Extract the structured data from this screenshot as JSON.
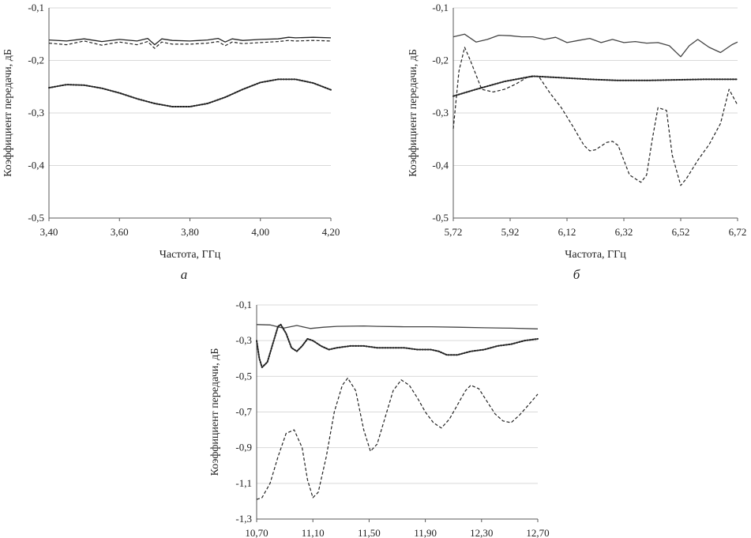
{
  "chart_data": [
    {
      "type": "line",
      "caption": "а",
      "xlabel": "Частота, ГГц",
      "ylabel": "Коэффициент передачи, дБ",
      "xlim": [
        3.4,
        4.2
      ],
      "ylim": [
        -0.5,
        -0.1
      ],
      "xticks": [
        "3,40",
        "3,60",
        "3,80",
        "4,00",
        "4,20"
      ],
      "yticks": [
        "-0,1",
        "-0,2",
        "-0,3",
        "-0,4",
        "-0,5"
      ],
      "grid": "horizontal",
      "series": [
        {
          "style": "solid",
          "color": "#222222",
          "x": [
            3.4,
            3.45,
            3.5,
            3.55,
            3.6,
            3.65,
            3.68,
            3.7,
            3.72,
            3.75,
            3.8,
            3.85,
            3.88,
            3.9,
            3.92,
            3.95,
            4.0,
            4.05,
            4.08,
            4.1,
            4.15,
            4.2
          ],
          "y": [
            -0.161,
            -0.163,
            -0.159,
            -0.164,
            -0.16,
            -0.163,
            -0.158,
            -0.17,
            -0.159,
            -0.162,
            -0.163,
            -0.161,
            -0.158,
            -0.165,
            -0.159,
            -0.162,
            -0.16,
            -0.159,
            -0.156,
            -0.157,
            -0.156,
            -0.157
          ]
        },
        {
          "style": "dashed",
          "color": "#222222",
          "x": [
            3.4,
            3.45,
            3.5,
            3.55,
            3.6,
            3.65,
            3.68,
            3.7,
            3.72,
            3.75,
            3.8,
            3.85,
            3.88,
            3.9,
            3.92,
            3.95,
            4.0,
            4.05,
            4.08,
            4.1,
            4.15,
            4.2
          ],
          "y": [
            -0.167,
            -0.17,
            -0.163,
            -0.171,
            -0.165,
            -0.17,
            -0.164,
            -0.177,
            -0.165,
            -0.169,
            -0.169,
            -0.167,
            -0.164,
            -0.172,
            -0.165,
            -0.168,
            -0.166,
            -0.164,
            -0.162,
            -0.163,
            -0.162,
            -0.163
          ]
        },
        {
          "style": "dotted",
          "color": "#222222",
          "x": [
            3.4,
            3.45,
            3.5,
            3.55,
            3.6,
            3.65,
            3.7,
            3.75,
            3.8,
            3.85,
            3.9,
            3.95,
            4.0,
            4.05,
            4.1,
            4.15,
            4.2
          ],
          "y": [
            -0.252,
            -0.246,
            -0.247,
            -0.253,
            -0.262,
            -0.273,
            -0.282,
            -0.288,
            -0.288,
            -0.282,
            -0.27,
            -0.255,
            -0.242,
            -0.236,
            -0.236,
            -0.243,
            -0.256
          ]
        }
      ]
    },
    {
      "type": "line",
      "caption": "б",
      "xlabel": "Частота, ГГц",
      "ylabel": "Коэффициент передачи, дБ",
      "xlim": [
        5.72,
        6.72
      ],
      "ylim": [
        -0.5,
        -0.1
      ],
      "xticks": [
        "5,72",
        "5,92",
        "6,12",
        "6,32",
        "6,52",
        "6,72"
      ],
      "yticks": [
        "-0,1",
        "-0,2",
        "-0,3",
        "-0,4",
        "-0,5"
      ],
      "grid": "horizontal",
      "series": [
        {
          "style": "solid",
          "color": "#444444",
          "x": [
            5.72,
            5.76,
            5.8,
            5.84,
            5.88,
            5.92,
            5.96,
            6.0,
            6.04,
            6.08,
            6.12,
            6.16,
            6.2,
            6.24,
            6.28,
            6.32,
            6.36,
            6.4,
            6.44,
            6.48,
            6.52,
            6.55,
            6.58,
            6.62,
            6.66,
            6.7,
            6.72
          ],
          "y": [
            -0.155,
            -0.15,
            -0.165,
            -0.16,
            -0.152,
            -0.153,
            -0.155,
            -0.155,
            -0.16,
            -0.156,
            -0.166,
            -0.162,
            -0.158,
            -0.166,
            -0.16,
            -0.166,
            -0.164,
            -0.167,
            -0.166,
            -0.172,
            -0.193,
            -0.172,
            -0.16,
            -0.175,
            -0.185,
            -0.17,
            -0.165
          ]
        },
        {
          "style": "dashed",
          "color": "#222222",
          "x": [
            5.72,
            5.74,
            5.76,
            5.78,
            5.82,
            5.86,
            5.9,
            5.94,
            5.98,
            6.02,
            6.06,
            6.1,
            6.14,
            6.18,
            6.2,
            6.22,
            6.26,
            6.28,
            6.3,
            6.34,
            6.38,
            6.4,
            6.42,
            6.44,
            6.47,
            6.49,
            6.52,
            6.54,
            6.58,
            6.62,
            6.66,
            6.69,
            6.72
          ],
          "y": [
            -0.33,
            -0.22,
            -0.175,
            -0.2,
            -0.255,
            -0.26,
            -0.255,
            -0.245,
            -0.232,
            -0.23,
            -0.262,
            -0.29,
            -0.325,
            -0.362,
            -0.372,
            -0.37,
            -0.356,
            -0.354,
            -0.362,
            -0.418,
            -0.432,
            -0.418,
            -0.35,
            -0.29,
            -0.295,
            -0.38,
            -0.438,
            -0.425,
            -0.39,
            -0.36,
            -0.32,
            -0.255,
            -0.285
          ]
        },
        {
          "style": "dotted",
          "color": "#222222",
          "x": [
            5.72,
            5.8,
            5.9,
            6.0,
            6.1,
            6.2,
            6.3,
            6.4,
            6.5,
            6.6,
            6.72
          ],
          "y": [
            -0.268,
            -0.255,
            -0.24,
            -0.23,
            -0.233,
            -0.236,
            -0.238,
            -0.238,
            -0.237,
            -0.236,
            -0.236
          ]
        }
      ]
    },
    {
      "type": "line",
      "caption": "",
      "xlabel": "",
      "ylabel": "Коэффициент передачи, дБ",
      "xlim": [
        10.7,
        12.8
      ],
      "ylim": [
        -1.3,
        -0.1
      ],
      "xticks": [
        "10,70",
        "11,10",
        "11,50",
        "11,90",
        "12,30",
        "12,70"
      ],
      "yticks": [
        "-0,1",
        "-0,3",
        "-0,5",
        "-0,7",
        "-0,9",
        "-1,1",
        "-1,3"
      ],
      "grid": "horizontal",
      "series": [
        {
          "style": "solid",
          "color": "#444444",
          "x": [
            10.7,
            10.8,
            10.9,
            11.0,
            11.1,
            11.2,
            11.3,
            11.4,
            11.5,
            11.6,
            11.8,
            12.0,
            12.2,
            12.4,
            12.6,
            12.8
          ],
          "y": [
            -0.21,
            -0.212,
            -0.23,
            -0.215,
            -0.232,
            -0.225,
            -0.22,
            -0.219,
            -0.218,
            -0.22,
            -0.222,
            -0.222,
            -0.225,
            -0.228,
            -0.23,
            -0.234
          ]
        },
        {
          "style": "dashed",
          "color": "#222222",
          "x": [
            10.7,
            10.74,
            10.8,
            10.86,
            10.92,
            10.98,
            11.04,
            11.08,
            11.12,
            11.16,
            11.22,
            11.28,
            11.34,
            11.38,
            11.44,
            11.5,
            11.55,
            11.6,
            11.66,
            11.72,
            11.78,
            11.84,
            11.9,
            11.96,
            12.02,
            12.08,
            12.14,
            12.2,
            12.26,
            12.3,
            12.36,
            12.42,
            12.48,
            12.54,
            12.6,
            12.66,
            12.72,
            12.8
          ],
          "y": [
            -1.19,
            -1.18,
            -1.1,
            -0.95,
            -0.82,
            -0.8,
            -0.9,
            -1.08,
            -1.18,
            -1.15,
            -0.95,
            -0.7,
            -0.55,
            -0.51,
            -0.58,
            -0.8,
            -0.92,
            -0.88,
            -0.73,
            -0.58,
            -0.52,
            -0.55,
            -0.62,
            -0.7,
            -0.76,
            -0.79,
            -0.74,
            -0.66,
            -0.58,
            -0.55,
            -0.57,
            -0.64,
            -0.71,
            -0.75,
            -0.76,
            -0.72,
            -0.67,
            -0.6
          ]
        },
        {
          "style": "dotted",
          "color": "#222222",
          "x": [
            10.7,
            10.72,
            10.74,
            10.78,
            10.82,
            10.86,
            10.88,
            10.92,
            10.96,
            11.0,
            11.04,
            11.08,
            11.12,
            11.18,
            11.24,
            11.3,
            11.4,
            11.5,
            11.6,
            11.7,
            11.8,
            11.9,
            12.0,
            12.06,
            12.12,
            12.2,
            12.3,
            12.4,
            12.5,
            12.6,
            12.7,
            12.8
          ],
          "y": [
            -0.3,
            -0.4,
            -0.45,
            -0.42,
            -0.32,
            -0.22,
            -0.21,
            -0.26,
            -0.34,
            -0.36,
            -0.33,
            -0.29,
            -0.3,
            -0.33,
            -0.35,
            -0.34,
            -0.33,
            -0.33,
            -0.34,
            -0.34,
            -0.34,
            -0.35,
            -0.35,
            -0.36,
            -0.38,
            -0.38,
            -0.36,
            -0.35,
            -0.33,
            -0.32,
            -0.3,
            -0.29
          ]
        }
      ]
    }
  ]
}
